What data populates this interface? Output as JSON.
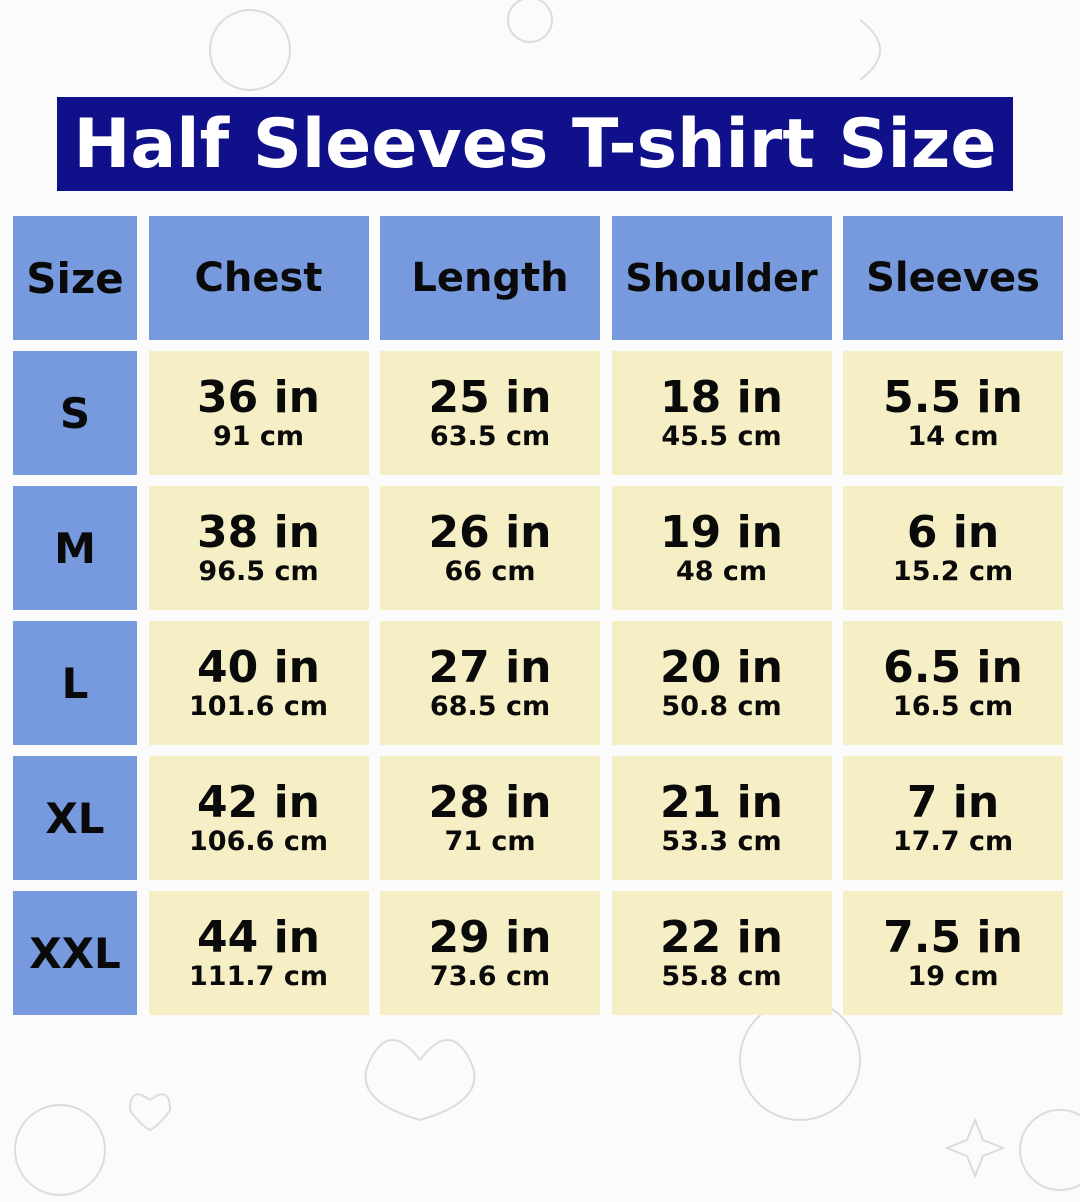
{
  "title": "Half Sleeves T-shirt Size",
  "colors": {
    "title_bg": "#10108a",
    "header_bg": "#7799dd",
    "cell_bg": "#f6efc6"
  },
  "headers": [
    "Size",
    "Chest",
    "Length",
    "Shoulder",
    "Sleeves"
  ],
  "rows": [
    {
      "size": "S",
      "cells": [
        {
          "in": "36 in",
          "cm": "91 cm"
        },
        {
          "in": "25 in",
          "cm": "63.5 cm"
        },
        {
          "in": "18 in",
          "cm": "45.5 cm"
        },
        {
          "in": "5.5 in",
          "cm": "14 cm"
        }
      ]
    },
    {
      "size": "M",
      "cells": [
        {
          "in": "38 in",
          "cm": "96.5 cm"
        },
        {
          "in": "26 in",
          "cm": "66 cm"
        },
        {
          "in": "19 in",
          "cm": "48 cm"
        },
        {
          "in": "6 in",
          "cm": "15.2 cm"
        }
      ]
    },
    {
      "size": "L",
      "cells": [
        {
          "in": "40 in",
          "cm": "101.6 cm"
        },
        {
          "in": "27 in",
          "cm": "68.5 cm"
        },
        {
          "in": "20 in",
          "cm": "50.8 cm"
        },
        {
          "in": "6.5 in",
          "cm": "16.5 cm"
        }
      ]
    },
    {
      "size": "XL",
      "cells": [
        {
          "in": "42 in",
          "cm": "106.6 cm"
        },
        {
          "in": "28 in",
          "cm": "71 cm"
        },
        {
          "in": "21 in",
          "cm": "53.3 cm"
        },
        {
          "in": "7 in",
          "cm": "17.7 cm"
        }
      ]
    },
    {
      "size": "XXL",
      "cells": [
        {
          "in": "44 in",
          "cm": "111.7 cm"
        },
        {
          "in": "29 in",
          "cm": "73.6 cm"
        },
        {
          "in": "22 in",
          "cm": "55.8 cm"
        },
        {
          "in": "7.5 in",
          "cm": "19 cm"
        }
      ]
    }
  ]
}
